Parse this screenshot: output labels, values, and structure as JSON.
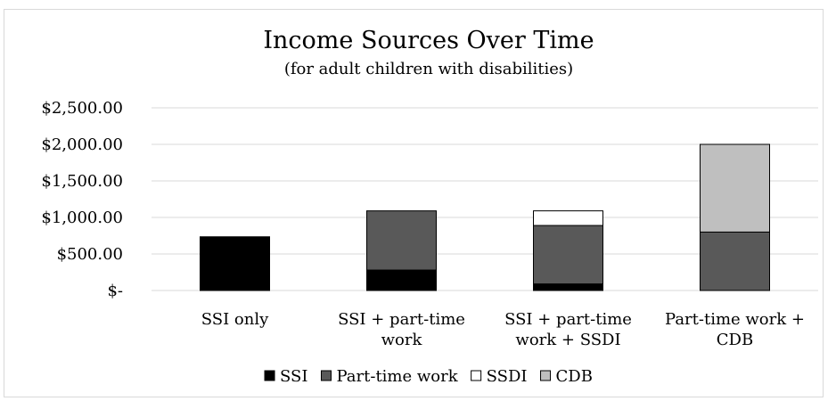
{
  "chart_data": {
    "type": "bar",
    "stacked": true,
    "title": "Income Sources Over Time",
    "subtitle": "(for adult children with disabilities)",
    "categories": [
      [
        "SSI only"
      ],
      [
        "SSI + part-time",
        "work"
      ],
      [
        "SSI + part-time",
        "work + SSDI"
      ],
      [
        "Part-time work +",
        "CDB"
      ]
    ],
    "series": [
      {
        "name": "SSI",
        "color": "#000000",
        "values": [
          735,
          280,
          90,
          0
        ]
      },
      {
        "name": "Part-time work",
        "color": "#595959",
        "values": [
          0,
          810,
          800,
          800
        ]
      },
      {
        "name": "SSDI",
        "color": "#ffffff",
        "values": [
          0,
          0,
          200,
          0
        ]
      },
      {
        "name": "CDB",
        "color": "#bfbfbf",
        "values": [
          0,
          0,
          0,
          1200
        ]
      }
    ],
    "ylim": [
      0,
      2500
    ],
    "yticks": [
      0,
      500,
      1000,
      1500,
      2000,
      2500
    ],
    "ytick_labels": [
      "$-",
      "$500.00",
      "$1,000.00",
      "$1,500.00",
      "$2,000.00",
      "$2,500.00"
    ],
    "grid": true,
    "legend_position": "bottom"
  }
}
